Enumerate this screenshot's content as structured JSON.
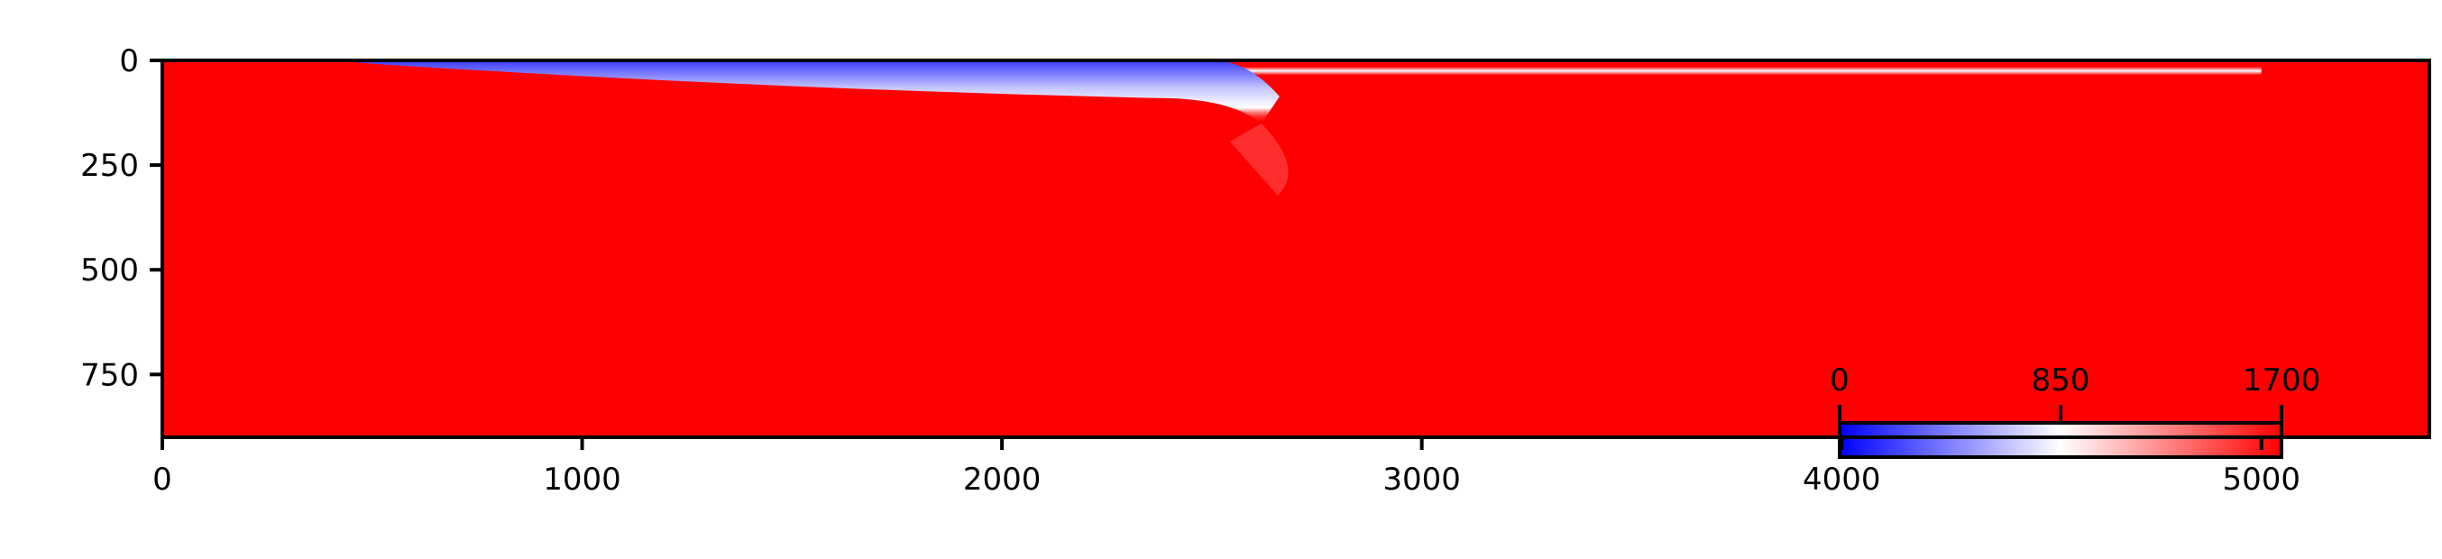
{
  "chart_data": {
    "type": "heatmap",
    "title": "",
    "xlabel": "",
    "ylabel": "",
    "xlim": [
      0,
      5400
    ],
    "ylim": [
      900,
      0
    ],
    "x_ticks": [
      0,
      1000,
      2000,
      3000,
      4000,
      5000
    ],
    "y_ticks": [
      0,
      250,
      500,
      750
    ],
    "background_value": 1700,
    "features": [
      {
        "name": "shallow low-value layer",
        "x_start": 400,
        "x_end": 2500,
        "x_curve_end": 2700,
        "top_depth": 0,
        "bottom_depth_start": 10,
        "bottom_depth_end": 90,
        "min_value": 0
      },
      {
        "name": "thin near-surface strip",
        "x_start": 2500,
        "x_end": 5000,
        "top_depth": 15,
        "bottom_depth": 35,
        "value": 850
      }
    ],
    "colormap": {
      "name": "bwr",
      "stops": [
        "#0000ff",
        "#ffffff",
        "#ff0000"
      ]
    },
    "colorbar": {
      "min": 0,
      "max": 1700,
      "ticks": [
        0,
        850,
        1700
      ],
      "tick_labels": [
        "0",
        "850",
        "1700"
      ],
      "placement": "inset lower-right"
    }
  }
}
